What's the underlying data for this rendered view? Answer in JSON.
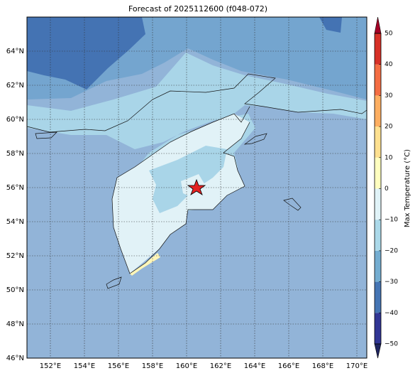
{
  "title": "Forecast of 2025112600 (f048-072)",
  "map": {
    "lonlim": [
      150.625,
      170.583
    ],
    "latlim": [
      46,
      66
    ],
    "lon_ticks": [
      {
        "value": 152,
        "label": "152°E"
      },
      {
        "value": 154,
        "label": "154°E"
      },
      {
        "value": 156,
        "label": "156°E"
      },
      {
        "value": 158,
        "label": "158°E"
      },
      {
        "value": 160,
        "label": "160°E"
      },
      {
        "value": 162,
        "label": "162°E"
      },
      {
        "value": 164,
        "label": "164°E"
      },
      {
        "value": 166,
        "label": "166°E"
      },
      {
        "value": 168,
        "label": "168°E"
      },
      {
        "value": 170,
        "label": "170°E"
      }
    ],
    "lat_ticks": [
      {
        "value": 46,
        "label": "46°N"
      },
      {
        "value": 48,
        "label": "48°N"
      },
      {
        "value": 50,
        "label": "50°N"
      },
      {
        "value": 52,
        "label": "52°N"
      },
      {
        "value": 54,
        "label": "54°N"
      },
      {
        "value": 56,
        "label": "56°N"
      },
      {
        "value": 58,
        "label": "58°N"
      },
      {
        "value": 60,
        "label": "60°N"
      },
      {
        "value": 62,
        "label": "62°N"
      },
      {
        "value": 64,
        "label": "64°N"
      }
    ]
  },
  "colorbar": {
    "label": "Max Temperature (°C)",
    "ticks": [
      {
        "value": -50,
        "label": "−50"
      },
      {
        "value": -40,
        "label": "−40"
      },
      {
        "value": -30,
        "label": "−30"
      },
      {
        "value": -20,
        "label": "−20"
      },
      {
        "value": -10,
        "label": "−10"
      },
      0,
      10,
      20,
      30,
      40,
      50
    ],
    "colors": [
      "#313695",
      "#4575b4",
      "#74add1",
      "#abd9e9",
      "#e0f3f8",
      "#ffffbf",
      "#fee090",
      "#fdae61",
      "#f46d43",
      "#d73027"
    ],
    "extend_colors": [
      "#1f2560",
      "#a50026"
    ]
  }
}
